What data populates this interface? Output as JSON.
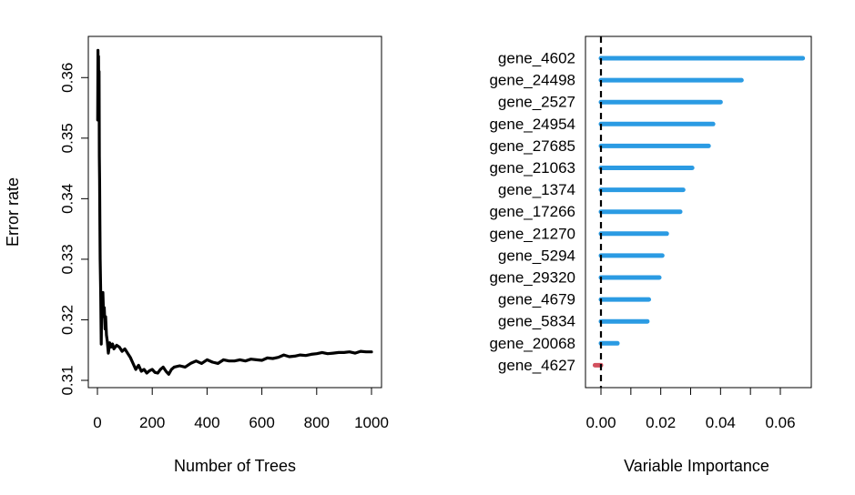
{
  "chart_data": [
    {
      "type": "line",
      "title": "",
      "xlabel": "Number of Trees",
      "ylabel": "Error rate",
      "xlim": [
        0,
        1000
      ],
      "ylim": [
        0.31,
        0.365
      ],
      "xticks": [
        0,
        200,
        400,
        600,
        800,
        1000
      ],
      "yticks": [
        0.31,
        0.32,
        0.33,
        0.34,
        0.35,
        0.36
      ],
      "grid": false,
      "line_color": "#000000",
      "series": [
        {
          "x": [
            1,
            2,
            3,
            4,
            5,
            6,
            7,
            8,
            9,
            10,
            12,
            14,
            16,
            18,
            20,
            22,
            25,
            28,
            30,
            33,
            36,
            40,
            45,
            50,
            55,
            60,
            70,
            80,
            90,
            100,
            110,
            120,
            130,
            140,
            150,
            160,
            170,
            180,
            190,
            200,
            210,
            220,
            230,
            240,
            250,
            260,
            270,
            280,
            300,
            320,
            340,
            360,
            380,
            400,
            420,
            440,
            460,
            480,
            500,
            520,
            540,
            560,
            580,
            600,
            620,
            640,
            660,
            680,
            700,
            720,
            740,
            760,
            780,
            800,
            820,
            840,
            860,
            880,
            900,
            920,
            940,
            960,
            980,
            1000
          ],
          "y": [
            0.353,
            0.3645,
            0.358,
            0.3635,
            0.356,
            0.361,
            0.347,
            0.343,
            0.336,
            0.33,
            0.3245,
            0.316,
            0.3245,
            0.3205,
            0.3245,
            0.3215,
            0.322,
            0.3185,
            0.3205,
            0.3175,
            0.3165,
            0.3145,
            0.3162,
            0.3155,
            0.316,
            0.3152,
            0.3158,
            0.3155,
            0.3148,
            0.3152,
            0.3145,
            0.3138,
            0.3128,
            0.3118,
            0.3125,
            0.3115,
            0.3118,
            0.3112,
            0.3116,
            0.3118,
            0.3113,
            0.3112,
            0.3118,
            0.3122,
            0.3115,
            0.311,
            0.3118,
            0.3122,
            0.3124,
            0.3122,
            0.3128,
            0.3132,
            0.3128,
            0.3134,
            0.313,
            0.3128,
            0.3134,
            0.3132,
            0.3132,
            0.3134,
            0.3132,
            0.3135,
            0.3134,
            0.3133,
            0.3137,
            0.3136,
            0.3138,
            0.3142,
            0.3139,
            0.314,
            0.3142,
            0.3141,
            0.3143,
            0.3144,
            0.3146,
            0.3144,
            0.3145,
            0.3146,
            0.3146,
            0.3147,
            0.3145,
            0.3148,
            0.3147,
            0.3147
          ]
        }
      ]
    },
    {
      "type": "bar",
      "orientation": "horizontal",
      "title": "",
      "xlabel": "Variable Importance",
      "ylabel": "",
      "xlim": [
        -0.003,
        0.07
      ],
      "xticks": [
        0.0,
        0.02,
        0.04,
        0.06
      ],
      "xtick_labels": [
        "0.00",
        "0.02",
        "0.04",
        "0.06"
      ],
      "reference_line": 0,
      "grid": false,
      "positive_color": "#2b9be3",
      "negative_color": "#d3515f",
      "categories": [
        "gene_4602",
        "gene_24498",
        "gene_2527",
        "gene_24954",
        "gene_27685",
        "gene_21063",
        "gene_1374",
        "gene_17266",
        "gene_21270",
        "gene_5294",
        "gene_29320",
        "gene_4679",
        "gene_5834",
        "gene_20068",
        "gene_4627"
      ],
      "values": [
        0.0675,
        0.047,
        0.04,
        0.0375,
        0.036,
        0.0305,
        0.0275,
        0.0265,
        0.022,
        0.0205,
        0.0195,
        0.016,
        0.0155,
        0.0055,
        -0.002
      ]
    }
  ]
}
